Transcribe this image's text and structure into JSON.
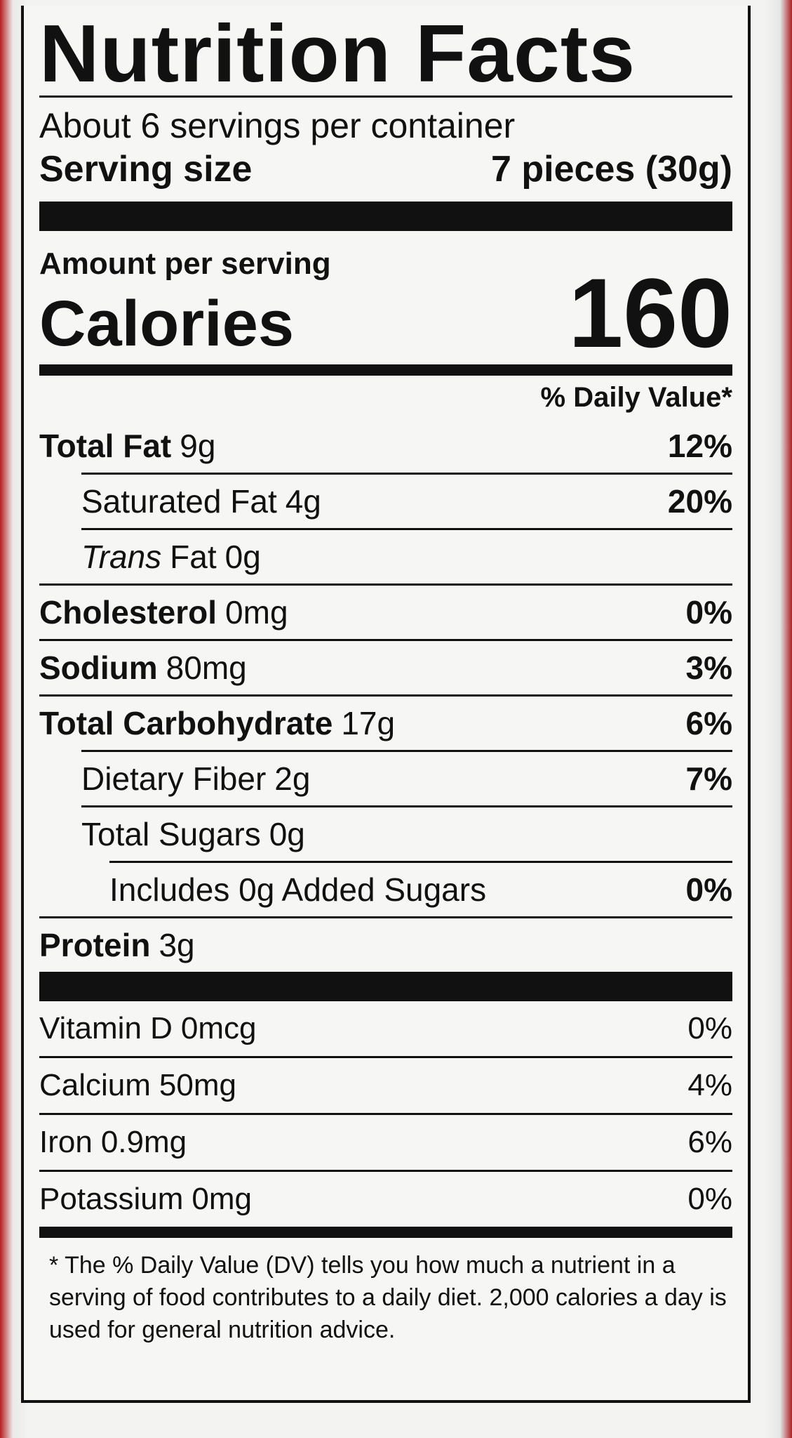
{
  "title": "Nutrition Facts",
  "servings": "About 6 servings per container",
  "serving_size": {
    "label": "Serving size",
    "value": "7 pieces (30g)"
  },
  "amount_per_serving": "Amount per serving",
  "calories": {
    "label": "Calories",
    "value": "160"
  },
  "daily_value_header": "% Daily Value*",
  "nutrients": [
    {
      "name": "Total Fat",
      "amount": "9g",
      "dv": "12%"
    },
    {
      "name": "Saturated Fat",
      "amount": "4g",
      "dv": "20%",
      "indent": 1
    },
    {
      "italic": "Trans",
      "name": "Fat",
      "amount": "0g",
      "indent": 1
    },
    {
      "name": "Cholesterol",
      "amount": "0mg",
      "dv": "0%"
    },
    {
      "name": "Sodium",
      "amount": "80mg",
      "dv": "3%"
    },
    {
      "name": "Total Carbohydrate",
      "amount": "17g",
      "dv": "6%"
    },
    {
      "name": "Dietary Fiber",
      "amount": "2g",
      "dv": "7%",
      "indent": 1
    },
    {
      "name": "Total Sugars",
      "amount": "0g",
      "indent": 1
    },
    {
      "name": "Includes 0g Added Sugars",
      "dv": "0%",
      "indent": 2
    },
    {
      "name": "Protein",
      "amount": "3g"
    }
  ],
  "vitamins": [
    {
      "name": "Vitamin D",
      "amount": "0mcg",
      "dv": "0%"
    },
    {
      "name": "Calcium",
      "amount": "50mg",
      "dv": "4%"
    },
    {
      "name": "Iron",
      "amount": "0.9mg",
      "dv": "6%"
    },
    {
      "name": "Potassium",
      "amount": "0mg",
      "dv": "0%"
    }
  ],
  "footnote": "* The % Daily Value (DV) tells you how much a nutrient in a serving of food contributes to a daily diet. 2,000 calories a day is used for general nutrition advice."
}
